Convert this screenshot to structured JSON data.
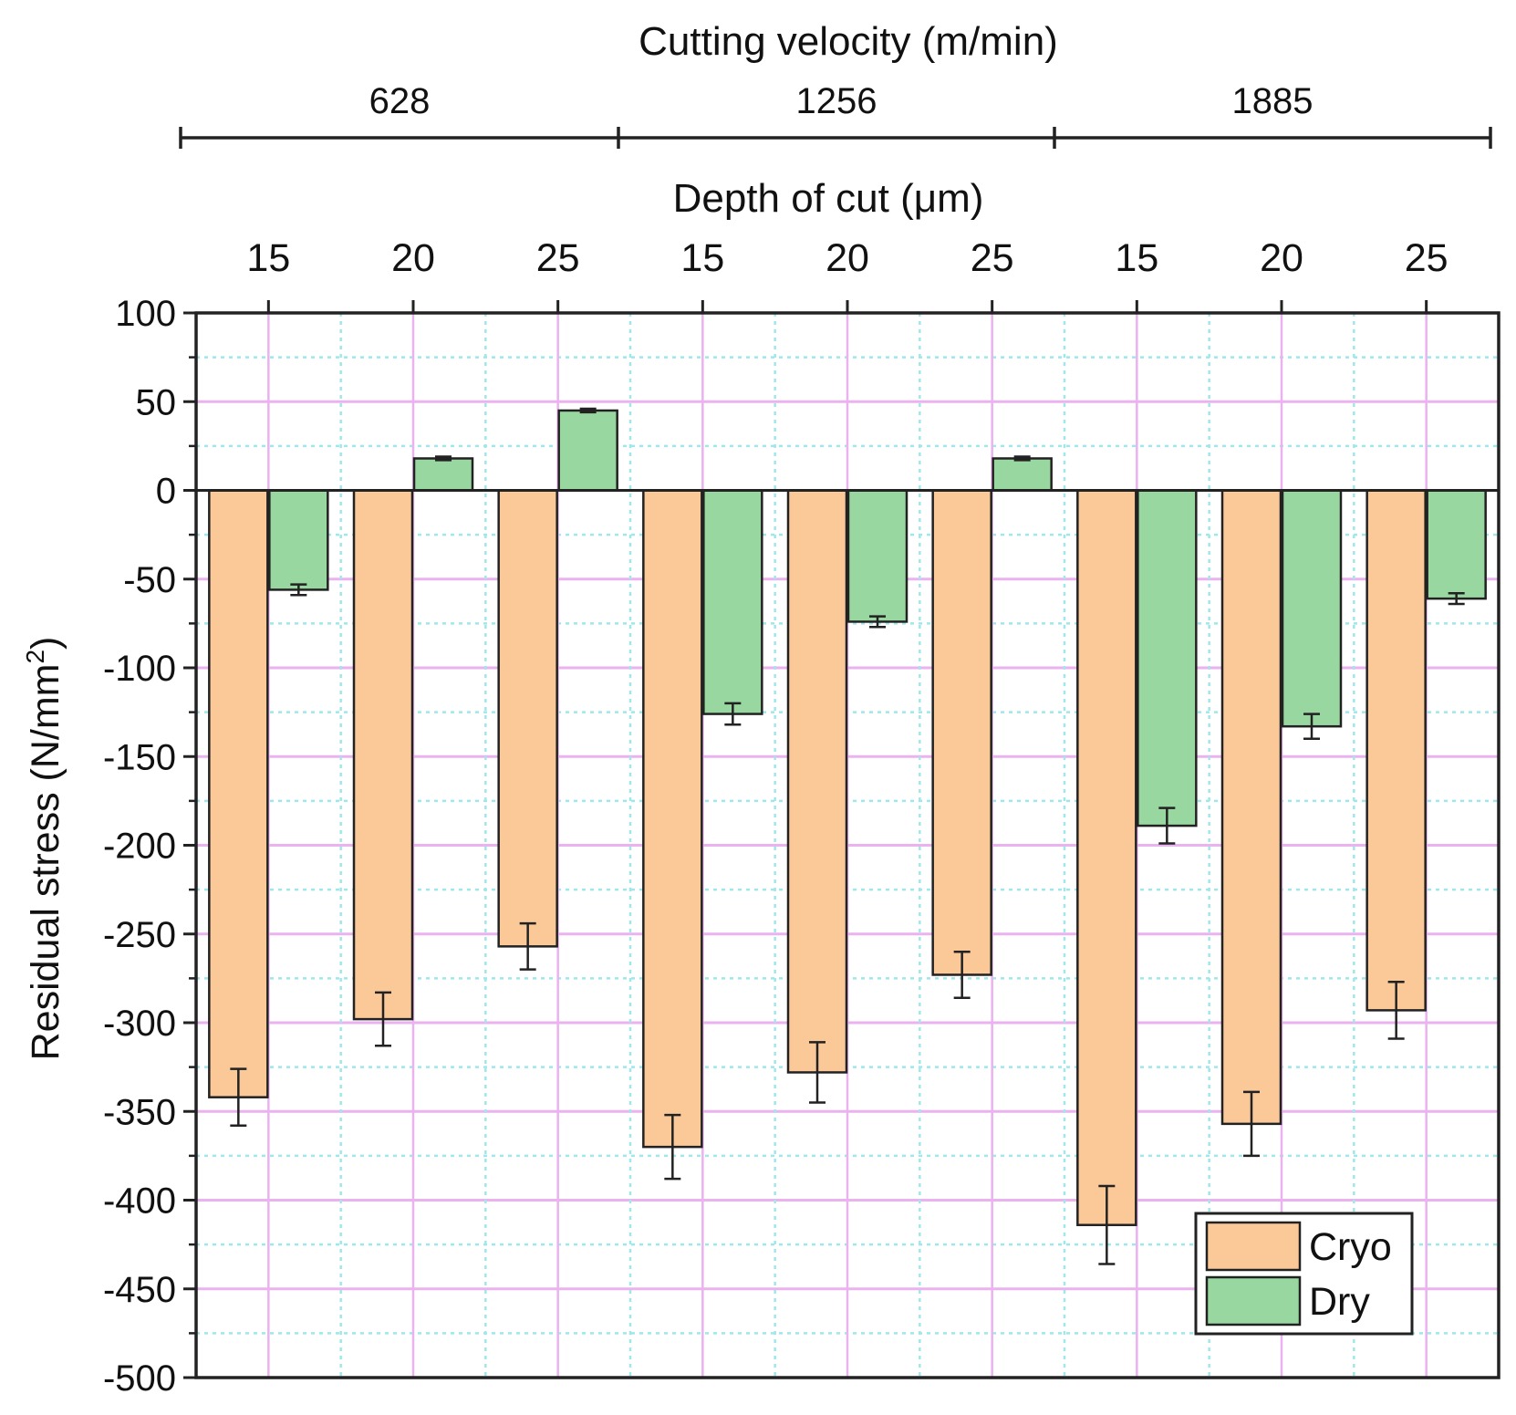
{
  "chart_data": {
    "type": "bar",
    "title": "",
    "top_axis_title": "Cutting velocity (m/min)",
    "velocity_groups": [
      "628",
      "1256",
      "1885"
    ],
    "category_axis_title": "Depth of cut (μm)",
    "categories": [
      "15",
      "20",
      "25",
      "15",
      "20",
      "25",
      "15",
      "20",
      "25"
    ],
    "ylabel_main": "Residual stress (N/mm",
    "ylabel_sup": "2",
    "ylabel_close": ")",
    "ylim": [
      -500,
      100
    ],
    "yticks": [
      "100",
      "50",
      "0",
      "-50",
      "-100",
      "-150",
      "-200",
      "-250",
      "-300",
      "-350",
      "-400",
      "-450",
      "-500"
    ],
    "grid": true,
    "legend_position": "bottom-right",
    "series": [
      {
        "name": "Cryo",
        "color": "#FBC898",
        "values": [
          -342,
          -298,
          -257,
          -370,
          -328,
          -273,
          -414,
          -357,
          -293
        ],
        "errors": [
          16,
          15,
          13,
          18,
          17,
          13,
          22,
          18,
          16
        ]
      },
      {
        "name": "Dry",
        "color": "#98D7A0",
        "values": [
          -56,
          18,
          45,
          -126,
          -74,
          18,
          -189,
          -133,
          -61
        ],
        "errors": [
          3,
          1,
          1,
          6,
          3,
          1,
          10,
          7,
          3
        ]
      }
    ]
  }
}
